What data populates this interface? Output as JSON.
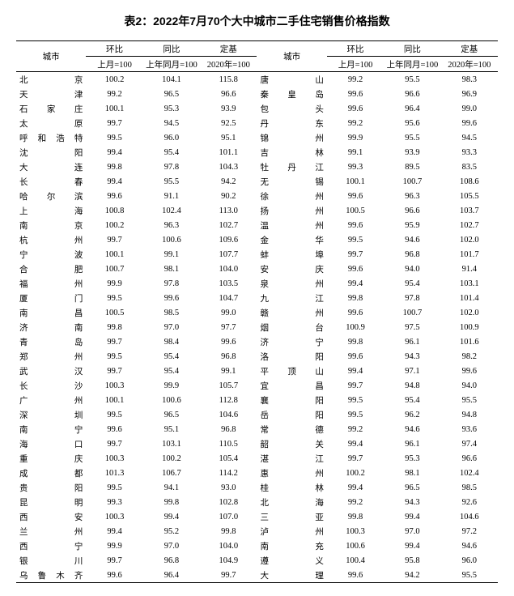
{
  "title": "表2：2022年7月70个大中城市二手住宅销售价格指数",
  "headers": {
    "city": "城市",
    "mom": "环比",
    "yoy": "同比",
    "base": "定基",
    "mom_sub": "上月=100",
    "yoy_sub": "上年同月=100",
    "base_sub": "2020年=100"
  },
  "rows": [
    {
      "l": {
        "city": "北　　京",
        "mom": "100.2",
        "yoy": "104.1",
        "base": "115.8"
      },
      "r": {
        "city": "唐　　山",
        "mom": "99.2",
        "yoy": "95.5",
        "base": "98.3"
      }
    },
    {
      "l": {
        "city": "天　　津",
        "mom": "99.2",
        "yoy": "96.5",
        "base": "96.6"
      },
      "r": {
        "city": "秦 皇 岛",
        "mom": "99.6",
        "yoy": "96.6",
        "base": "96.9"
      }
    },
    {
      "l": {
        "city": "石 家 庄",
        "mom": "100.1",
        "yoy": "95.3",
        "base": "93.9"
      },
      "r": {
        "city": "包　　头",
        "mom": "99.6",
        "yoy": "96.4",
        "base": "99.0"
      }
    },
    {
      "l": {
        "city": "太　　原",
        "mom": "99.7",
        "yoy": "94.5",
        "base": "92.5"
      },
      "r": {
        "city": "丹　　东",
        "mom": "99.2",
        "yoy": "95.6",
        "base": "99.6"
      }
    },
    {
      "l": {
        "city": "呼和浩特",
        "mom": "99.5",
        "yoy": "96.0",
        "base": "95.1"
      },
      "r": {
        "city": "锦　　州",
        "mom": "99.9",
        "yoy": "95.5",
        "base": "94.5"
      }
    },
    {
      "l": {
        "city": "沈　　阳",
        "mom": "99.4",
        "yoy": "95.4",
        "base": "101.1"
      },
      "r": {
        "city": "吉　　林",
        "mom": "99.1",
        "yoy": "93.9",
        "base": "93.3"
      }
    },
    {
      "l": {
        "city": "大　　连",
        "mom": "99.8",
        "yoy": "97.8",
        "base": "104.3"
      },
      "r": {
        "city": "牡 丹 江",
        "mom": "99.3",
        "yoy": "89.5",
        "base": "83.5"
      }
    },
    {
      "l": {
        "city": "长　　春",
        "mom": "99.4",
        "yoy": "95.5",
        "base": "94.2"
      },
      "r": {
        "city": "无　　锡",
        "mom": "100.1",
        "yoy": "100.7",
        "base": "108.6"
      }
    },
    {
      "l": {
        "city": "哈 尔 滨",
        "mom": "99.6",
        "yoy": "91.1",
        "base": "90.2"
      },
      "r": {
        "city": "徐　　州",
        "mom": "99.6",
        "yoy": "96.3",
        "base": "105.5"
      }
    },
    {
      "l": {
        "city": "上　　海",
        "mom": "100.8",
        "yoy": "102.4",
        "base": "113.0"
      },
      "r": {
        "city": "扬　　州",
        "mom": "100.5",
        "yoy": "96.6",
        "base": "103.7"
      }
    },
    {
      "l": {
        "city": "南　　京",
        "mom": "100.2",
        "yoy": "96.3",
        "base": "102.7"
      },
      "r": {
        "city": "温　　州",
        "mom": "99.6",
        "yoy": "95.9",
        "base": "102.7"
      }
    },
    {
      "l": {
        "city": "杭　　州",
        "mom": "99.7",
        "yoy": "100.6",
        "base": "109.6"
      },
      "r": {
        "city": "金　　华",
        "mom": "99.5",
        "yoy": "94.6",
        "base": "102.0"
      }
    },
    {
      "l": {
        "city": "宁　　波",
        "mom": "100.1",
        "yoy": "99.1",
        "base": "107.7"
      },
      "r": {
        "city": "蚌　　埠",
        "mom": "99.7",
        "yoy": "96.8",
        "base": "101.7"
      }
    },
    {
      "l": {
        "city": "合　　肥",
        "mom": "100.7",
        "yoy": "98.1",
        "base": "104.0"
      },
      "r": {
        "city": "安　　庆",
        "mom": "99.6",
        "yoy": "94.0",
        "base": "91.4"
      }
    },
    {
      "l": {
        "city": "福　　州",
        "mom": "99.9",
        "yoy": "97.8",
        "base": "103.5"
      },
      "r": {
        "city": "泉　　州",
        "mom": "99.4",
        "yoy": "95.4",
        "base": "103.1"
      }
    },
    {
      "l": {
        "city": "厦　　门",
        "mom": "99.5",
        "yoy": "99.6",
        "base": "104.7"
      },
      "r": {
        "city": "九　　江",
        "mom": "99.8",
        "yoy": "97.8",
        "base": "101.4"
      }
    },
    {
      "l": {
        "city": "南　　昌",
        "mom": "100.5",
        "yoy": "98.5",
        "base": "99.0"
      },
      "r": {
        "city": "赣　　州",
        "mom": "99.6",
        "yoy": "100.7",
        "base": "102.0"
      }
    },
    {
      "l": {
        "city": "济　　南",
        "mom": "99.8",
        "yoy": "97.0",
        "base": "97.7"
      },
      "r": {
        "city": "烟　　台",
        "mom": "100.9",
        "yoy": "97.5",
        "base": "100.9"
      }
    },
    {
      "l": {
        "city": "青　　岛",
        "mom": "99.7",
        "yoy": "98.4",
        "base": "99.6"
      },
      "r": {
        "city": "济　　宁",
        "mom": "99.8",
        "yoy": "96.1",
        "base": "101.6"
      }
    },
    {
      "l": {
        "city": "郑　　州",
        "mom": "99.5",
        "yoy": "95.4",
        "base": "96.8"
      },
      "r": {
        "city": "洛　　阳",
        "mom": "99.6",
        "yoy": "94.3",
        "base": "98.2"
      }
    },
    {
      "l": {
        "city": "武　　汉",
        "mom": "99.7",
        "yoy": "95.4",
        "base": "99.1"
      },
      "r": {
        "city": "平 顶 山",
        "mom": "99.4",
        "yoy": "97.1",
        "base": "99.6"
      }
    },
    {
      "l": {
        "city": "长　　沙",
        "mom": "100.3",
        "yoy": "99.9",
        "base": "105.7"
      },
      "r": {
        "city": "宜　　昌",
        "mom": "99.7",
        "yoy": "94.8",
        "base": "94.0"
      }
    },
    {
      "l": {
        "city": "广　　州",
        "mom": "100.1",
        "yoy": "100.6",
        "base": "112.8"
      },
      "r": {
        "city": "襄　　阳",
        "mom": "99.5",
        "yoy": "95.4",
        "base": "95.5"
      }
    },
    {
      "l": {
        "city": "深　　圳",
        "mom": "99.5",
        "yoy": "96.5",
        "base": "104.6"
      },
      "r": {
        "city": "岳　　阳",
        "mom": "99.5",
        "yoy": "96.2",
        "base": "94.8"
      }
    },
    {
      "l": {
        "city": "南　　宁",
        "mom": "99.6",
        "yoy": "95.1",
        "base": "96.8"
      },
      "r": {
        "city": "常　　德",
        "mom": "99.2",
        "yoy": "94.6",
        "base": "93.6"
      }
    },
    {
      "l": {
        "city": "海　　口",
        "mom": "99.7",
        "yoy": "103.1",
        "base": "110.5"
      },
      "r": {
        "city": "韶　　关",
        "mom": "99.4",
        "yoy": "96.1",
        "base": "97.4"
      }
    },
    {
      "l": {
        "city": "重　　庆",
        "mom": "100.3",
        "yoy": "100.2",
        "base": "105.4"
      },
      "r": {
        "city": "湛　　江",
        "mom": "99.7",
        "yoy": "95.3",
        "base": "96.6"
      }
    },
    {
      "l": {
        "city": "成　　都",
        "mom": "101.3",
        "yoy": "106.7",
        "base": "114.2"
      },
      "r": {
        "city": "惠　　州",
        "mom": "100.2",
        "yoy": "98.1",
        "base": "102.4"
      }
    },
    {
      "l": {
        "city": "贵　　阳",
        "mom": "99.5",
        "yoy": "94.1",
        "base": "93.0"
      },
      "r": {
        "city": "桂　　林",
        "mom": "99.4",
        "yoy": "96.5",
        "base": "98.5"
      }
    },
    {
      "l": {
        "city": "昆　　明",
        "mom": "99.3",
        "yoy": "99.8",
        "base": "102.8"
      },
      "r": {
        "city": "北　　海",
        "mom": "99.2",
        "yoy": "94.3",
        "base": "92.6"
      }
    },
    {
      "l": {
        "city": "西　　安",
        "mom": "100.3",
        "yoy": "99.4",
        "base": "107.0"
      },
      "r": {
        "city": "三　　亚",
        "mom": "99.8",
        "yoy": "99.4",
        "base": "104.6"
      }
    },
    {
      "l": {
        "city": "兰　　州",
        "mom": "99.4",
        "yoy": "95.2",
        "base": "99.8"
      },
      "r": {
        "city": "泸　　州",
        "mom": "100.3",
        "yoy": "97.0",
        "base": "97.2"
      }
    },
    {
      "l": {
        "city": "西　　宁",
        "mom": "99.9",
        "yoy": "97.0",
        "base": "104.0"
      },
      "r": {
        "city": "南　　充",
        "mom": "100.6",
        "yoy": "99.4",
        "base": "94.6"
      }
    },
    {
      "l": {
        "city": "银　　川",
        "mom": "99.7",
        "yoy": "96.8",
        "base": "104.9"
      },
      "r": {
        "city": "遵　　义",
        "mom": "100.4",
        "yoy": "95.8",
        "base": "96.0"
      }
    },
    {
      "l": {
        "city": "乌鲁木齐",
        "mom": "99.6",
        "yoy": "96.4",
        "base": "99.7"
      },
      "r": {
        "city": "大　　理",
        "mom": "99.6",
        "yoy": "94.2",
        "base": "95.5"
      }
    }
  ]
}
